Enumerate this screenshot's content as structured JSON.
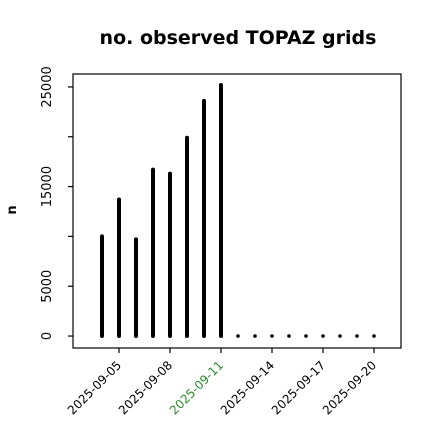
{
  "chart_data": {
    "type": "bar",
    "title": "no. observed TOPAZ grids",
    "xlabel": "",
    "ylabel": "n",
    "x_dates": [
      "2025-09-04",
      "2025-09-05",
      "2025-09-06",
      "2025-09-07",
      "2025-09-08",
      "2025-09-09",
      "2025-09-10",
      "2025-09-11",
      "2025-09-12",
      "2025-09-13",
      "2025-09-14",
      "2025-09-15",
      "2025-09-16",
      "2025-09-17",
      "2025-09-18",
      "2025-09-19",
      "2025-09-20"
    ],
    "values": [
      10000,
      13700,
      9700,
      16700,
      16300,
      19900,
      23600,
      25200,
      0,
      0,
      0,
      0,
      0,
      0,
      0,
      0,
      0
    ],
    "ylim": [
      -1200,
      26300
    ],
    "yticks": [
      0,
      5000,
      15000,
      25000
    ],
    "yticks_minor": [
      10000,
      20000
    ],
    "xticks": [
      "2025-09-05",
      "2025-09-08",
      "2025-09-11",
      "2025-09-14",
      "2025-09-17",
      "2025-09-20"
    ],
    "highlight_tick": "2025-09-11",
    "highlight_color": "#2e8b2e",
    "bar_color": "#000000",
    "grid": false,
    "legend": "none"
  }
}
